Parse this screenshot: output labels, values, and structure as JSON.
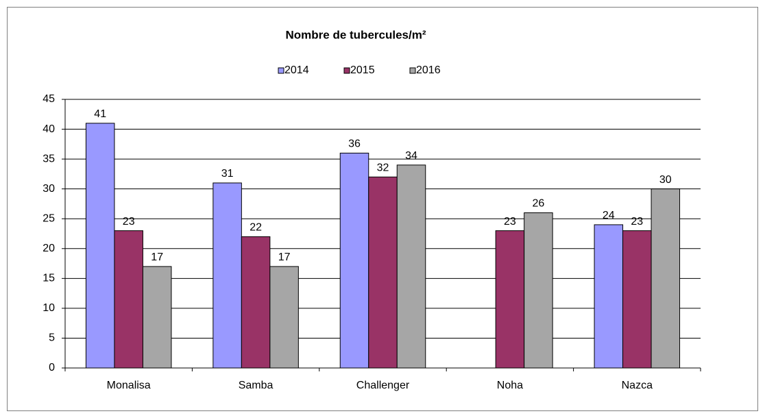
{
  "chart_data": {
    "type": "bar",
    "title": "Nombre de tubercules/m²",
    "categories": [
      "Monalisa",
      "Samba",
      "Challenger",
      "Noha",
      "Nazca"
    ],
    "series": [
      {
        "name": "2014",
        "color": "#9999ff",
        "values": [
          41,
          31,
          36,
          null,
          24
        ]
      },
      {
        "name": "2015",
        "color": "#993366",
        "values": [
          23,
          22,
          32,
          23,
          23
        ]
      },
      {
        "name": "2016",
        "color": "#a6a6a6",
        "values": [
          17,
          17,
          34,
          26,
          30
        ]
      }
    ],
    "ylim": [
      0,
      45
    ],
    "yticks": [
      0,
      5,
      10,
      15,
      20,
      25,
      30,
      35,
      40,
      45
    ],
    "grid": true,
    "legend": "top"
  }
}
